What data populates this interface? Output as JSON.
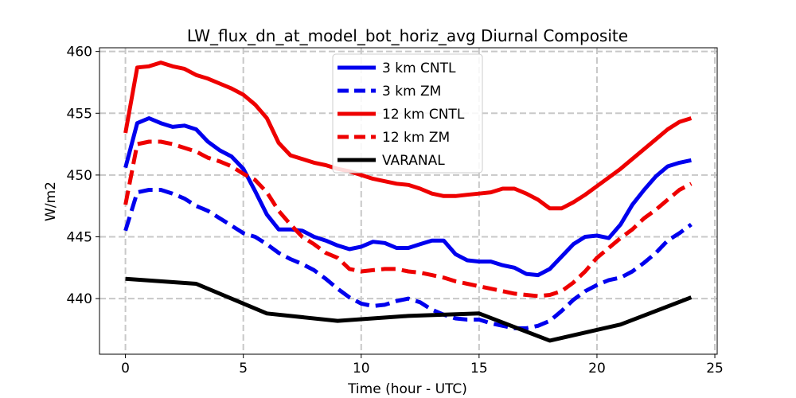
{
  "chart_data": {
    "type": "line",
    "title": "LW_flux_dn_at_model_bot_horiz_avg Diurnal Composite",
    "xlabel": "Time (hour - UTC)",
    "ylabel": "W/m2",
    "xlim": [
      -1.1,
      25.1
    ],
    "ylim": [
      435.5,
      460.3
    ],
    "xticks": [
      0,
      5,
      10,
      15,
      20,
      25
    ],
    "yticks": [
      440,
      445,
      450,
      455,
      460
    ],
    "grid": true,
    "legend_position": "top-center",
    "series": [
      {
        "name": "3 km CNTL",
        "color": "#0000ee",
        "dash": "solid",
        "x": [
          0,
          0.5,
          1,
          1.5,
          2,
          2.5,
          3,
          3.5,
          4,
          4.5,
          5,
          5.5,
          6,
          6.5,
          7,
          7.5,
          8,
          8.5,
          9,
          9.5,
          10,
          10.5,
          11,
          11.5,
          12,
          12.5,
          13,
          13.5,
          14,
          14.5,
          15,
          15.5,
          16,
          16.5,
          17,
          17.5,
          18,
          18.5,
          19,
          19.5,
          20,
          20.5,
          21,
          21.5,
          22,
          22.5,
          23,
          23.5,
          24
        ],
        "values": [
          450.6,
          454.2,
          454.6,
          454.2,
          453.9,
          454.0,
          453.7,
          452.7,
          452.0,
          451.5,
          450.5,
          448.7,
          446.8,
          445.6,
          445.6,
          445.5,
          445.0,
          444.7,
          444.3,
          444.0,
          444.2,
          444.6,
          444.5,
          444.1,
          444.1,
          444.4,
          444.7,
          444.7,
          443.6,
          443.1,
          443.0,
          443.0,
          442.7,
          442.5,
          442.0,
          441.9,
          442.4,
          443.4,
          444.4,
          445.0,
          445.1,
          444.9,
          446.0,
          447.6,
          448.8,
          449.9,
          450.7,
          451.0,
          451.2
        ]
      },
      {
        "name": "3 km ZM",
        "color": "#0000ee",
        "dash": "dashed",
        "x": [
          0,
          0.5,
          1,
          1.5,
          2,
          2.5,
          3,
          3.5,
          4,
          4.5,
          5,
          5.5,
          6,
          6.5,
          7,
          7.5,
          8,
          8.5,
          9,
          9.5,
          10,
          10.5,
          11,
          11.5,
          12,
          12.5,
          13,
          13.5,
          14,
          14.5,
          15,
          15.5,
          16,
          16.5,
          17,
          17.5,
          18,
          18.5,
          19,
          19.5,
          20,
          20.5,
          21,
          21.5,
          22,
          22.5,
          23,
          23.5,
          24
        ],
        "values": [
          445.5,
          448.6,
          448.8,
          448.8,
          448.5,
          448.1,
          447.5,
          447.1,
          446.5,
          445.9,
          445.3,
          445.0,
          444.4,
          443.7,
          443.2,
          442.8,
          442.3,
          441.6,
          440.8,
          440.1,
          439.6,
          439.4,
          439.5,
          439.8,
          440.0,
          439.7,
          439.1,
          438.7,
          438.4,
          438.3,
          438.3,
          438.0,
          437.8,
          437.6,
          437.6,
          437.8,
          438.2,
          439.0,
          439.9,
          440.6,
          441.1,
          441.5,
          441.7,
          442.2,
          442.9,
          443.7,
          444.7,
          445.3,
          446.0
        ]
      },
      {
        "name": "12 km CNTL",
        "color": "#ee0000",
        "dash": "solid",
        "x": [
          0,
          0.5,
          1,
          1.5,
          2,
          2.5,
          3,
          3.5,
          4,
          4.5,
          5,
          5.5,
          6,
          6.5,
          7,
          7.5,
          8,
          8.5,
          9,
          9.5,
          10,
          10.5,
          11,
          11.5,
          12,
          12.5,
          13,
          13.5,
          14,
          14.5,
          15,
          15.5,
          16,
          16.5,
          17,
          17.5,
          18,
          18.5,
          19,
          19.5,
          20,
          20.5,
          21,
          21.5,
          22,
          22.5,
          23,
          23.5,
          24
        ],
        "values": [
          453.4,
          458.7,
          458.8,
          459.1,
          458.8,
          458.6,
          458.1,
          457.8,
          457.4,
          457.0,
          456.5,
          455.7,
          454.6,
          452.6,
          451.6,
          451.3,
          451.0,
          450.8,
          450.5,
          450.3,
          450.0,
          449.7,
          449.5,
          449.3,
          449.2,
          448.9,
          448.5,
          448.3,
          448.3,
          448.4,
          448.5,
          448.6,
          448.9,
          448.9,
          448.5,
          448.0,
          447.3,
          447.3,
          447.8,
          448.4,
          449.1,
          449.8,
          450.5,
          451.3,
          452.1,
          452.9,
          453.7,
          454.3,
          454.6
        ]
      },
      {
        "name": "12 km ZM",
        "color": "#ee0000",
        "dash": "dashed",
        "x": [
          0,
          0.5,
          1,
          1.5,
          2,
          2.5,
          3,
          3.5,
          4,
          4.5,
          5,
          5.5,
          6,
          6.5,
          7,
          7.5,
          8,
          8.5,
          9,
          9.5,
          10,
          10.5,
          11,
          11.5,
          12,
          12.5,
          13,
          13.5,
          14,
          14.5,
          15,
          15.5,
          16,
          16.5,
          17,
          17.5,
          18,
          18.5,
          19,
          19.5,
          20,
          20.5,
          21,
          21.5,
          22,
          22.5,
          23,
          23.5,
          24
        ],
        "values": [
          447.6,
          452.5,
          452.7,
          452.7,
          452.5,
          452.2,
          451.9,
          451.4,
          451.1,
          450.7,
          450.1,
          449.6,
          448.6,
          447.1,
          446.0,
          445.0,
          444.4,
          443.7,
          443.3,
          442.4,
          442.2,
          442.3,
          442.4,
          442.4,
          442.2,
          442.1,
          441.9,
          441.7,
          441.4,
          441.2,
          441.0,
          440.8,
          440.6,
          440.4,
          440.3,
          440.2,
          440.3,
          440.6,
          441.3,
          442.2,
          443.3,
          444.1,
          444.9,
          445.6,
          446.5,
          447.2,
          448.0,
          448.8,
          449.3
        ]
      },
      {
        "name": "VARANAL",
        "color": "#000000",
        "dash": "solid",
        "x": [
          0,
          3,
          6,
          9,
          12,
          15,
          18,
          21,
          24
        ],
        "values": [
          441.6,
          441.2,
          438.8,
          438.2,
          438.6,
          438.8,
          436.6,
          437.9,
          440.1
        ]
      }
    ]
  }
}
